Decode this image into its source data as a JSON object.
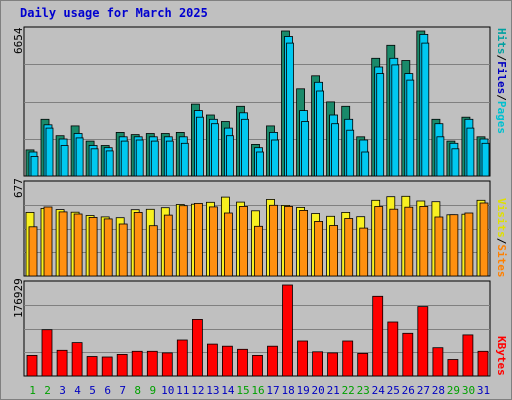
{
  "title": "Daily usage for March 2025",
  "axis_max": {
    "hits": "6654",
    "visits": "677",
    "kbytes": "176929"
  },
  "right_labels": {
    "hits_panel": [
      {
        "text": "Hits",
        "color": "#00a0a0"
      },
      {
        "text": "Files",
        "color": "#0000c0"
      },
      {
        "text": "Pages",
        "color": "#00c0d0"
      }
    ],
    "visits_panel": [
      {
        "text": "Visits",
        "color": "#e0e000"
      },
      {
        "text": "Sites",
        "color": "#ff8000"
      }
    ],
    "kbytes_panel": [
      {
        "text": "KBytes",
        "color": "#ff0000"
      }
    ]
  },
  "colors": {
    "hits": "#1a8a6a",
    "files": "#00c8f0",
    "pages": "#00c8f0",
    "visits": "#f8f020",
    "sites": "#ff9010",
    "kbytes": "#ff0000",
    "weekend_day": "#00a000",
    "weekday": "#0000c0"
  },
  "chart_data": {
    "type": "bar",
    "title": "Daily usage for March 2025",
    "categories": [
      "1",
      "2",
      "3",
      "4",
      "5",
      "6",
      "7",
      "8",
      "9",
      "10",
      "11",
      "12",
      "13",
      "14",
      "15",
      "16",
      "17",
      "18",
      "19",
      "20",
      "21",
      "22",
      "23",
      "24",
      "25",
      "26",
      "27",
      "28",
      "29",
      "30",
      "31"
    ],
    "weekend_days": [
      "1",
      "2",
      "8",
      "9",
      "15",
      "16",
      "22",
      "23",
      "29",
      "30"
    ],
    "series": [
      {
        "name": "Hits",
        "panel": "top",
        "values": [
          1200,
          2600,
          1850,
          2300,
          1600,
          1400,
          2000,
          1900,
          1950,
          1950,
          2000,
          3300,
          2800,
          2500,
          3200,
          1450,
          2300,
          6654,
          4000,
          4600,
          3400,
          3200,
          1800,
          5400,
          6000,
          5300,
          6654,
          2600,
          1600,
          2700,
          1800
        ]
      },
      {
        "name": "Files",
        "panel": "top",
        "values": [
          1100,
          2350,
          1700,
          1950,
          1400,
          1300,
          1800,
          1800,
          1800,
          1800,
          1800,
          3000,
          2600,
          2200,
          2900,
          1300,
          2000,
          6400,
          3000,
          4300,
          2800,
          2600,
          1650,
          5000,
          5400,
          4700,
          6500,
          2400,
          1500,
          2600,
          1700
        ]
      },
      {
        "name": "Pages",
        "panel": "top",
        "values": [
          900,
          2200,
          1400,
          1750,
          1250,
          1150,
          1600,
          1650,
          1600,
          1600,
          1500,
          2700,
          2400,
          1850,
          2600,
          1100,
          1650,
          6100,
          2500,
          3900,
          2400,
          2100,
          1100,
          4700,
          5100,
          4400,
          6100,
          1800,
          1250,
          2200,
          1500
        ]
      },
      {
        "name": "Visits",
        "panel": "middle",
        "values": [
          473,
          503,
          494,
          475,
          450,
          440,
          434,
          493,
          496,
          508,
          532,
          534,
          548,
          587,
          550,
          485,
          570,
          525,
          510,
          465,
          444,
          473,
          441,
          563,
          590,
          593,
          558,
          553,
          455,
          460,
          563
        ]
      },
      {
        "name": "Sites",
        "panel": "middle",
        "values": [
          366,
          513,
          477,
          461,
          436,
          425,
          387,
          473,
          374,
          453,
          523,
          540,
          514,
          469,
          518,
          370,
          526,
          518,
          488,
          406,
          376,
          428,
          356,
          517,
          497,
          512,
          518,
          439,
          456,
          469,
          543
        ]
      },
      {
        "name": "KBytes",
        "panel": "bottom",
        "values": [
          40000,
          90000,
          50000,
          65000,
          38000,
          37000,
          42000,
          48000,
          48000,
          45000,
          70000,
          110000,
          62000,
          58000,
          52000,
          40000,
          58000,
          176929,
          68000,
          47000,
          45000,
          68000,
          44000,
          155000,
          105000,
          83000,
          135000,
          55000,
          32000,
          80000,
          48000
        ]
      }
    ],
    "ylim": {
      "top": [
        0,
        6654
      ],
      "middle": [
        0,
        677
      ],
      "bottom": [
        0,
        176929
      ]
    },
    "grid": true
  }
}
